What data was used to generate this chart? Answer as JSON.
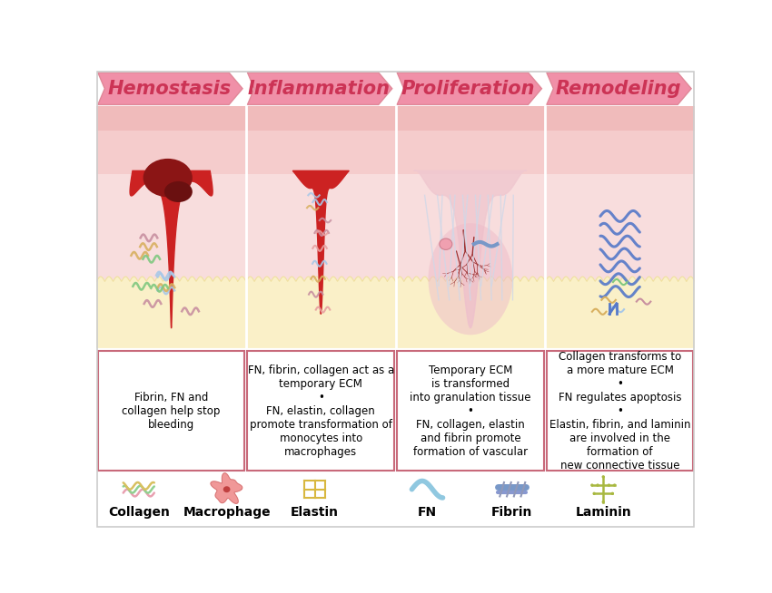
{
  "stages": [
    "Hemostasis",
    "Inflammation",
    "Proliferation",
    "Remodeling"
  ],
  "arrow_color": "#F090A8",
  "arrow_text_color": "#CC3355",
  "bg_color": "#FFFFFF",
  "border_color": "#C8697A",
  "skin_top_color": "#F0BBBB",
  "skin_top2_color": "#F5CCCC",
  "skin_mid_color": "#F8DDDD",
  "skin_bot_color": "#FAF0C8",
  "skin_bump_color": "#F0E0A0",
  "wound_red": "#CC2222",
  "wound_dark": "#8B1515",
  "wound_pink": "#F0AABB",
  "panel_div_color": "#FFFFFF",
  "text_descriptions": [
    "Fibrin, FN and\ncollagen help stop\nbleeding",
    "FN, fibrin, collagen act as a\ntemporary ECM\n•\nFN, elastin, collagen\npromote transformation of\nmonocytes into\nmacrophages",
    "Temporary ECM\nis transformed\ninto granulation tissue\n•\nFN, collagen, elastin\nand fibrin promote\nformation of vascular",
    "Collagen transforms to\na more mature ECM\n•\nFN regulates apoptosis\n•\nElastin, fibrin, and laminin\nare involved in the\nformation of\nnew connective tissue"
  ],
  "legend_labels": [
    "Collagen",
    "Macrophage",
    "Elastin",
    "FN",
    "Fibrin",
    "Laminin"
  ],
  "title_fontsize": 15,
  "desc_fontsize": 8.5,
  "legend_fontsize": 10
}
